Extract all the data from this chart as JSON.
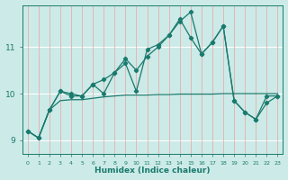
{
  "title": "",
  "xlabel": "Humidex (Indice chaleur)",
  "bg_color": "#cceae7",
  "grid_color_white": "#ffffff",
  "grid_color_red": "#e08888",
  "line_color": "#1a7a6e",
  "xlim": [
    -0.5,
    23.5
  ],
  "ylim": [
    8.7,
    11.9
  ],
  "xticks": [
    0,
    1,
    2,
    3,
    4,
    5,
    6,
    7,
    8,
    9,
    10,
    11,
    12,
    13,
    14,
    15,
    16,
    17,
    18,
    19,
    20,
    21,
    22,
    23
  ],
  "yticks": [
    9,
    10,
    11
  ],
  "line1_x": [
    0,
    1,
    2,
    3,
    4,
    5,
    6,
    7,
    8,
    9,
    10,
    11,
    12,
    13,
    14,
    15,
    16,
    17,
    18,
    19,
    20,
    21,
    22,
    23
  ],
  "line1_y": [
    9.2,
    9.05,
    9.65,
    10.05,
    10.0,
    9.95,
    10.2,
    10.3,
    10.45,
    10.65,
    10.05,
    10.95,
    11.05,
    11.25,
    11.55,
    11.75,
    10.85,
    11.1,
    11.45,
    9.85,
    9.6,
    9.45,
    9.8,
    9.95
  ],
  "line2_x": [
    0,
    1,
    2,
    3,
    4,
    5,
    6,
    7,
    8,
    9,
    10,
    11,
    12,
    13,
    14,
    15,
    16,
    17,
    18,
    19,
    20,
    21,
    22,
    23
  ],
  "line2_y": [
    9.2,
    9.05,
    9.65,
    10.05,
    9.95,
    9.95,
    10.2,
    10.0,
    10.45,
    10.75,
    10.5,
    10.8,
    11.0,
    11.25,
    11.6,
    11.2,
    10.85,
    11.1,
    11.45,
    9.85,
    9.6,
    9.45,
    9.95,
    9.95
  ],
  "line3_x": [
    0,
    1,
    2,
    3,
    4,
    5,
    6,
    7,
    8,
    9,
    10,
    11,
    12,
    13,
    14,
    15,
    16,
    17,
    18,
    19,
    20,
    21,
    22,
    23
  ],
  "line3_y": [
    9.2,
    9.05,
    9.65,
    9.85,
    9.87,
    9.87,
    9.9,
    9.93,
    9.95,
    9.97,
    9.97,
    9.97,
    9.98,
    9.98,
    9.99,
    9.99,
    9.99,
    9.99,
    10.0,
    10.0,
    10.0,
    10.0,
    10.0,
    10.0
  ]
}
